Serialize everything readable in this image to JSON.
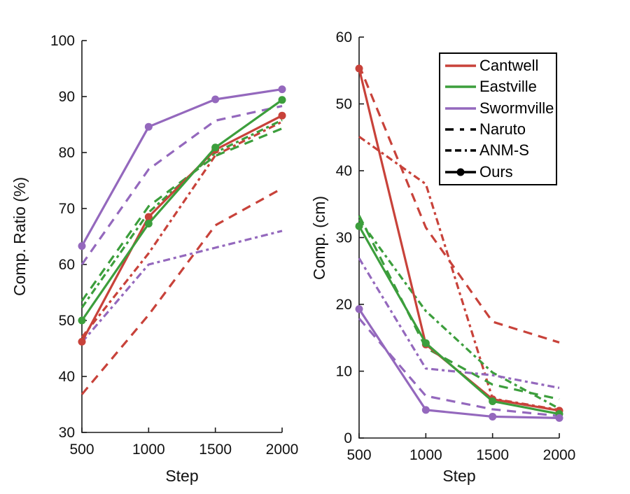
{
  "figure": {
    "background": "#ffffff",
    "axis_color": "#1a1a1a",
    "text_color": "#111111"
  },
  "colors": {
    "Cantwell": "#c8423a",
    "Eastville": "#3c9e3c",
    "Swormville": "#9468bd",
    "neutral": "#000000"
  },
  "legend": {
    "entries": [
      {
        "label": "Cantwell",
        "kind": "color",
        "color_key": "Cantwell",
        "dash": "solid",
        "marker": false
      },
      {
        "label": "Eastville",
        "kind": "color",
        "color_key": "Eastville",
        "dash": "solid",
        "marker": false
      },
      {
        "label": "Swormville",
        "kind": "color",
        "color_key": "Swormville",
        "dash": "solid",
        "marker": false
      },
      {
        "label": "Naruto",
        "kind": "style",
        "color_key": "neutral",
        "dash": "Naruto",
        "marker": false
      },
      {
        "label": "ANM-S",
        "kind": "style",
        "color_key": "neutral",
        "dash": "ANM-S",
        "marker": false
      },
      {
        "label": "Ours",
        "kind": "style",
        "color_key": "neutral",
        "dash": "Ours",
        "marker": true
      }
    ]
  },
  "chart_data": [
    {
      "type": "line",
      "title": "",
      "xlabel": "Step",
      "ylabel": "Comp. Ratio (%)",
      "x": [
        500,
        1000,
        1500,
        2000
      ],
      "xlim": [
        500,
        2000
      ],
      "ylim": [
        30,
        100
      ],
      "xticks": [
        500,
        1000,
        1500,
        2000
      ],
      "yticks": [
        30,
        40,
        50,
        60,
        70,
        80,
        90,
        100
      ],
      "grid": false,
      "legend_position": "none",
      "series": [
        {
          "name": "Cantwell Naruto",
          "location": "Cantwell",
          "method": "Naruto",
          "values": [
            36.8,
            51.0,
            67.0,
            73.6
          ]
        },
        {
          "name": "Cantwell ANM-S",
          "location": "Cantwell",
          "method": "ANM-S",
          "values": [
            47.0,
            62.0,
            79.5,
            85.5
          ]
        },
        {
          "name": "Eastville Naruto",
          "location": "Eastville",
          "method": "Naruto",
          "values": [
            53.5,
            70.4,
            79.4,
            84.3
          ]
        },
        {
          "name": "Eastville ANM-S",
          "location": "Eastville",
          "method": "ANM-S",
          "values": [
            52.3,
            69.3,
            80.0,
            85.8
          ]
        },
        {
          "name": "Swormville Naruto",
          "location": "Swormville",
          "method": "Naruto",
          "values": [
            60.0,
            77.0,
            85.7,
            88.3
          ]
        },
        {
          "name": "Swormville ANM-S",
          "location": "Swormville",
          "method": "ANM-S",
          "values": [
            46.1,
            60.0,
            63.0,
            66.0
          ]
        },
        {
          "name": "Cantwell Ours",
          "location": "Cantwell",
          "method": "Ours",
          "values": [
            46.2,
            68.5,
            80.5,
            86.6
          ]
        },
        {
          "name": "Eastville Ours",
          "location": "Eastville",
          "method": "Ours",
          "values": [
            50.0,
            67.3,
            80.9,
            89.4
          ]
        },
        {
          "name": "Swormville Ours",
          "location": "Swormville",
          "method": "Ours",
          "values": [
            63.3,
            84.6,
            89.5,
            91.3
          ]
        }
      ]
    },
    {
      "type": "line",
      "title": "",
      "xlabel": "Step",
      "ylabel": "Comp. (cm)",
      "x": [
        500,
        1000,
        1500,
        2000
      ],
      "xlim": [
        500,
        2000
      ],
      "ylim": [
        0,
        60
      ],
      "xticks": [
        500,
        1000,
        1500,
        2000
      ],
      "yticks": [
        0,
        10,
        20,
        30,
        40,
        50,
        60
      ],
      "grid": false,
      "legend_position": "upper right",
      "series": [
        {
          "name": "Cantwell Naruto",
          "location": "Cantwell",
          "method": "Naruto",
          "values": [
            55.8,
            31.5,
            17.4,
            14.3
          ]
        },
        {
          "name": "Cantwell ANM-S",
          "location": "Cantwell",
          "method": "ANM-S",
          "values": [
            45.1,
            38.0,
            5.9,
            4.2
          ]
        },
        {
          "name": "Eastville Naruto",
          "location": "Eastville",
          "method": "Naruto",
          "values": [
            33.3,
            13.5,
            8.0,
            5.8
          ]
        },
        {
          "name": "Eastville ANM-S",
          "location": "Eastville",
          "method": "ANM-S",
          "values": [
            32.7,
            19.0,
            9.8,
            4.4
          ]
        },
        {
          "name": "Swormville Naruto",
          "location": "Swormville",
          "method": "Naruto",
          "values": [
            17.9,
            6.3,
            4.3,
            3.3
          ]
        },
        {
          "name": "Swormville ANM-S",
          "location": "Swormville",
          "method": "ANM-S",
          "values": [
            26.9,
            10.4,
            9.4,
            7.5
          ]
        },
        {
          "name": "Cantwell Ours",
          "location": "Cantwell",
          "method": "Ours",
          "values": [
            55.3,
            14.0,
            5.8,
            4.1
          ]
        },
        {
          "name": "Eastville Ours",
          "location": "Eastville",
          "method": "Ours",
          "values": [
            31.7,
            14.2,
            5.5,
            3.6
          ]
        },
        {
          "name": "Swormville Ours",
          "location": "Swormville",
          "method": "Ours",
          "values": [
            19.3,
            4.2,
            3.2,
            3.0
          ]
        }
      ]
    }
  ]
}
